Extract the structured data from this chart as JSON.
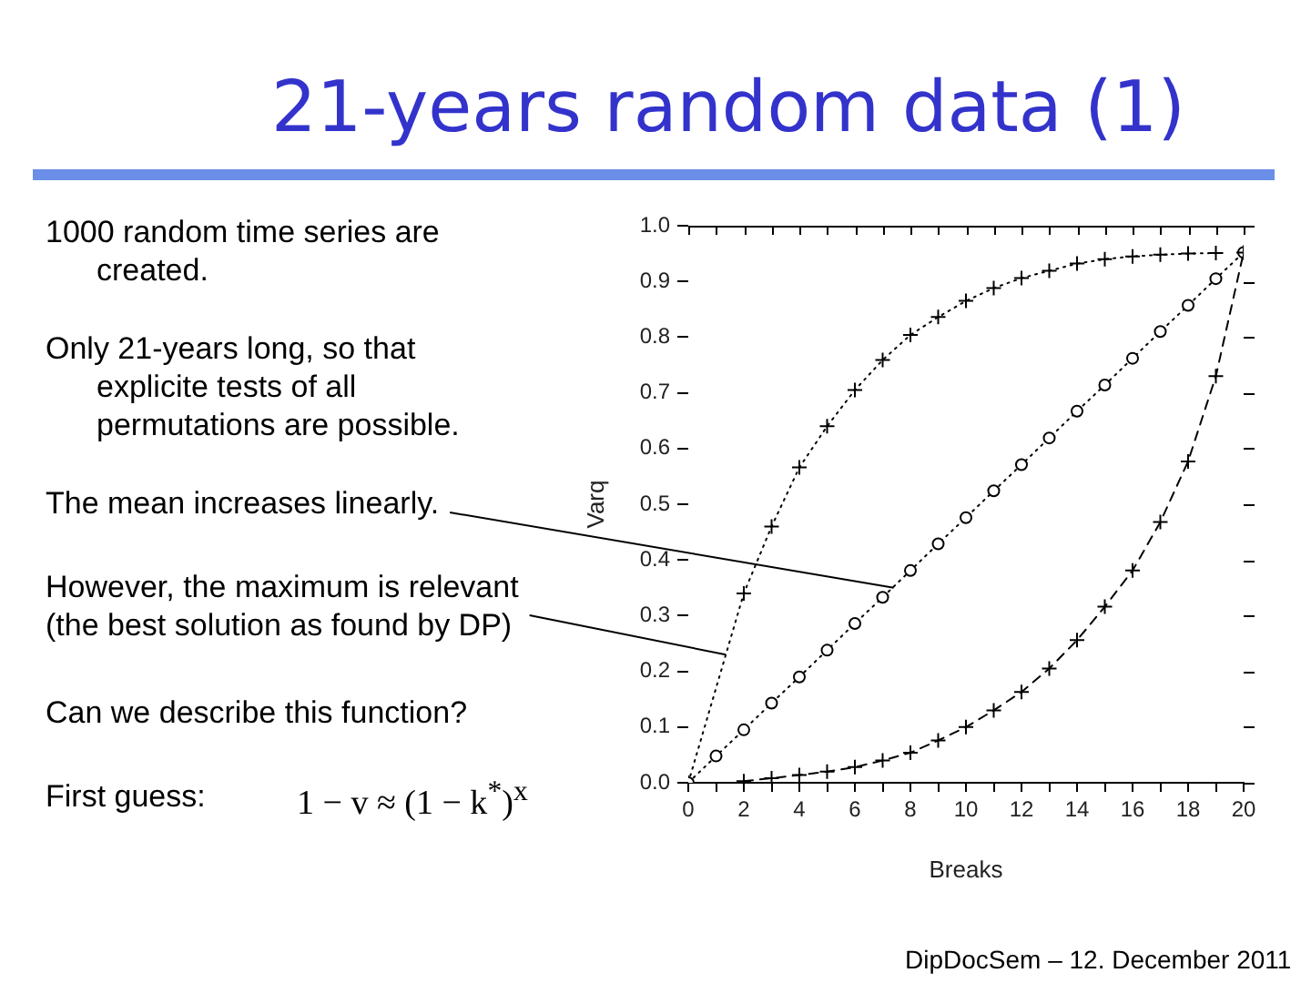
{
  "chart_data": {
    "type": "line",
    "title": "21-years random data (1)",
    "xlabel": "Breaks",
    "ylabel": "Varq",
    "annotations": [
      "1000 random time series are created.",
      "Only 21-years long, so that explicite tests of all permutations are possible.",
      {
        "text": "The mean increases linearly.",
        "x": 7.4,
        "y": 0.35
      },
      {
        "text": "However, the maximum is relevant (the best solution as found by DP)",
        "x": 1.35,
        "y": 0.23
      },
      "Can we describe this function?",
      "First guess:",
      "1 − v ≈ (1 − k$^{*}$)$^{x}$",
      "DipDocSem – 12. December 2011"
    ],
    "x": [
      0,
      1,
      2,
      3,
      4,
      5,
      6,
      7,
      8,
      9,
      10,
      11,
      12,
      13,
      14,
      15,
      16,
      17,
      18,
      19,
      20
    ],
    "series": [
      {
        "color": "#000000",
        "marker": "cross",
        "line_style": "dotted",
        "x": [
          0,
          2,
          3,
          4,
          5,
          6,
          7,
          8,
          9,
          10,
          11,
          12,
          13,
          14,
          15,
          16,
          17,
          18,
          19
        ],
        "values": [
          0,
          0.34,
          0.46,
          0.566,
          0.64,
          0.705,
          0.759,
          0.804,
          0.836,
          0.865,
          0.888,
          0.906,
          0.919,
          0.932,
          0.94,
          0.945,
          0.948,
          0.95,
          0.951
        ]
      },
      {
        "color": "#000000",
        "marker": "circle",
        "line_style": "dotted",
        "values": [
          0,
          0.048,
          0.095,
          0.143,
          0.19,
          0.238,
          0.286,
          0.333,
          0.381,
          0.429,
          0.476,
          0.524,
          0.571,
          0.619,
          0.667,
          0.714,
          0.762,
          0.81,
          0.857,
          0.905,
          0.952
        ]
      },
      {
        "color": "#000000",
        "marker": "cross",
        "line_style": "dashed",
        "values": [
          null,
          null,
          0.003,
          0.008,
          0.014,
          0.02,
          0.028,
          0.04,
          0.054,
          0.076,
          0.1,
          0.13,
          0.163,
          0.205,
          0.256,
          0.316,
          0.381,
          0.468,
          0.577,
          0.73,
          0.952
        ]
      }
    ],
    "xlim": [
      0,
      20
    ],
    "ylim": [
      0,
      1
    ],
    "xticks": [
      0,
      {
        "value": 1,
        "label": null
      },
      2,
      {
        "value": 3,
        "label": null
      },
      4,
      {
        "value": 5,
        "label": null
      },
      6,
      {
        "value": 7,
        "label": null
      },
      8,
      {
        "value": 9,
        "label": null
      },
      10,
      {
        "value": 11,
        "label": null
      },
      12,
      {
        "value": 13,
        "label": null
      },
      14,
      {
        "value": 15,
        "label": null
      },
      16,
      {
        "value": 17,
        "label": null
      },
      18,
      {
        "value": 19,
        "label": null
      },
      20
    ],
    "yticks": [
      {
        "value": 0,
        "label": "0.0"
      },
      0.1,
      0.2,
      0.3,
      0.4,
      0.5,
      0.6,
      0.7,
      0.8,
      0.9,
      {
        "value": 1,
        "label": "1.0"
      }
    ]
  }
}
